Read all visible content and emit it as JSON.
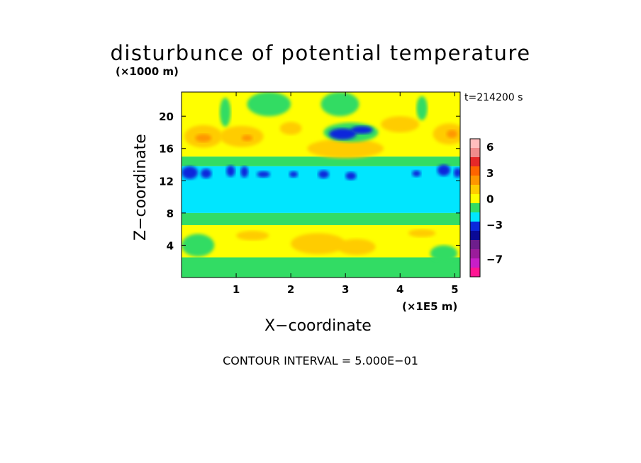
{
  "chart_data": {
    "type": "heatmap",
    "title": "disturbunce of potential temperature",
    "xlabel": "X−coordinate",
    "ylabel": "Z−coordinate",
    "x_unit": "(×1E5 m)",
    "z_unit": "(×1000 m)",
    "time_label": "t=214200 s",
    "footer": "CONTOUR INTERVAL = 5.000E−01",
    "xlim": [
      0,
      5.1
    ],
    "ylim": [
      0,
      23
    ],
    "x_ticks": [
      "1",
      "2",
      "3",
      "4",
      "5"
    ],
    "x_tick_values": [
      1,
      2,
      3,
      4,
      5
    ],
    "y_ticks": [
      "4",
      "8",
      "12",
      "16",
      "20"
    ],
    "y_tick_values": [
      4,
      8,
      12,
      16,
      20
    ],
    "colorbar": {
      "levels": [
        -9,
        -8,
        -7,
        -6,
        -5,
        -4,
        -3,
        -2,
        -1,
        0,
        1,
        2,
        3,
        4,
        5,
        6,
        7
      ],
      "colors": [
        "#ff1493",
        "#c81ec8",
        "#9b1c9b",
        "#6e1e8c",
        "#0a0a96",
        "#0a28dc",
        "#00e6ff",
        "#32dc64",
        "#ffff00",
        "#ffcc00",
        "#ff9600",
        "#ff6400",
        "#e62828",
        "#f08c8c",
        "#ffbebe"
      ],
      "tick_labels": [
        "6",
        "3",
        "0",
        "−3",
        "−7"
      ],
      "tick_values": [
        6,
        3,
        0,
        -3,
        -7
      ]
    },
    "bands": [
      {
        "z0": 0,
        "z1": 2.5,
        "color": "#32dc64"
      },
      {
        "z0": 2.5,
        "z1": 6.5,
        "color": "#ffff00"
      },
      {
        "z0": 6.5,
        "z1": 8,
        "color": "#32dc64"
      },
      {
        "z0": 8,
        "z1": 11.5,
        "color": "#00e6ff"
      },
      {
        "z0": 11.5,
        "z1": 13.8,
        "color": "#00e6ff"
      },
      {
        "z0": 13.8,
        "z1": 15,
        "color": "#32dc64"
      },
      {
        "z0": 15,
        "z1": 23,
        "color": "#ffff00"
      }
    ],
    "cells": [
      {
        "x": 0.4,
        "z": 17.5,
        "rx": 0.35,
        "rz": 1.4,
        "color": "#ffcc00"
      },
      {
        "x": 1.1,
        "z": 17.5,
        "rx": 0.4,
        "rz": 1.3,
        "color": "#ffcc00"
      },
      {
        "x": 2.0,
        "z": 18.5,
        "rx": 0.2,
        "rz": 0.8,
        "color": "#ffcc00"
      },
      {
        "x": 4.0,
        "z": 19.0,
        "rx": 0.35,
        "rz": 1.0,
        "color": "#ffcc00"
      },
      {
        "x": 4.9,
        "z": 17.8,
        "rx": 0.3,
        "rz": 1.3,
        "color": "#ffcc00"
      },
      {
        "x": 3.0,
        "z": 16.0,
        "rx": 0.7,
        "rz": 1.2,
        "color": "#ffcc00"
      },
      {
        "x": 0.4,
        "z": 17.3,
        "rx": 0.15,
        "rz": 0.5,
        "color": "#ff9600"
      },
      {
        "x": 1.2,
        "z": 17.3,
        "rx": 0.1,
        "rz": 0.4,
        "color": "#ff9600"
      },
      {
        "x": 4.95,
        "z": 17.8,
        "rx": 0.1,
        "rz": 0.5,
        "color": "#ff9600"
      },
      {
        "x": 3.1,
        "z": 18.0,
        "rx": 0.5,
        "rz": 1.2,
        "color": "#32dc64"
      },
      {
        "x": 2.95,
        "z": 17.8,
        "rx": 0.25,
        "rz": 0.7,
        "color": "#0a28dc"
      },
      {
        "x": 3.3,
        "z": 18.3,
        "rx": 0.2,
        "rz": 0.5,
        "color": "#0a28dc"
      },
      {
        "x": 0.15,
        "z": 13.0,
        "rx": 0.15,
        "rz": 0.8,
        "color": "#0a28dc"
      },
      {
        "x": 0.45,
        "z": 12.9,
        "rx": 0.1,
        "rz": 0.6,
        "color": "#0a28dc"
      },
      {
        "x": 0.9,
        "z": 13.2,
        "rx": 0.08,
        "rz": 0.7,
        "color": "#0a28dc"
      },
      {
        "x": 1.15,
        "z": 13.1,
        "rx": 0.07,
        "rz": 0.7,
        "color": "#0a28dc"
      },
      {
        "x": 1.5,
        "z": 12.8,
        "rx": 0.12,
        "rz": 0.4,
        "color": "#0a28dc"
      },
      {
        "x": 2.05,
        "z": 12.8,
        "rx": 0.08,
        "rz": 0.4,
        "color": "#0a28dc"
      },
      {
        "x": 2.6,
        "z": 12.8,
        "rx": 0.1,
        "rz": 0.5,
        "color": "#0a28dc"
      },
      {
        "x": 3.1,
        "z": 12.6,
        "rx": 0.1,
        "rz": 0.5,
        "color": "#0a28dc"
      },
      {
        "x": 4.3,
        "z": 12.9,
        "rx": 0.08,
        "rz": 0.4,
        "color": "#0a28dc"
      },
      {
        "x": 4.8,
        "z": 13.3,
        "rx": 0.12,
        "rz": 0.7,
        "color": "#0a28dc"
      },
      {
        "x": 5.05,
        "z": 13.0,
        "rx": 0.07,
        "rz": 0.6,
        "color": "#0a28dc"
      },
      {
        "x": 2.5,
        "z": 4.2,
        "rx": 0.5,
        "rz": 1.3,
        "color": "#ffcc00"
      },
      {
        "x": 3.2,
        "z": 3.8,
        "rx": 0.35,
        "rz": 1.0,
        "color": "#ffcc00"
      },
      {
        "x": 1.3,
        "z": 5.2,
        "rx": 0.3,
        "rz": 0.6,
        "color": "#ffcc00"
      },
      {
        "x": 4.4,
        "z": 5.5,
        "rx": 0.25,
        "rz": 0.5,
        "color": "#ffcc00"
      },
      {
        "x": 0.3,
        "z": 4.0,
        "rx": 0.3,
        "rz": 1.4,
        "color": "#32dc64"
      },
      {
        "x": 4.8,
        "z": 3.0,
        "rx": 0.25,
        "rz": 1.0,
        "color": "#32dc64"
      },
      {
        "x": 1.6,
        "z": 21.5,
        "rx": 0.4,
        "rz": 1.5,
        "color": "#32dc64"
      },
      {
        "x": 2.9,
        "z": 21.5,
        "rx": 0.35,
        "rz": 1.5,
        "color": "#32dc64"
      },
      {
        "x": 0.8,
        "z": 20.5,
        "rx": 0.1,
        "rz": 1.8,
        "color": "#32dc64"
      },
      {
        "x": 4.4,
        "z": 21.0,
        "rx": 0.1,
        "rz": 1.5,
        "color": "#32dc64"
      }
    ]
  }
}
